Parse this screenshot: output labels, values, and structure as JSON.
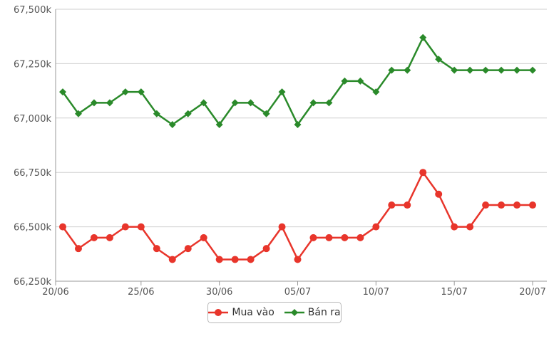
{
  "chart_data": {
    "type": "line",
    "x_dates": [
      "20/06",
      "21/06",
      "22/06",
      "23/06",
      "24/06",
      "25/06",
      "26/06",
      "27/06",
      "28/06",
      "29/06",
      "30/06",
      "01/07",
      "02/07",
      "03/07",
      "04/07",
      "05/07",
      "06/07",
      "07/07",
      "08/07",
      "09/07",
      "10/07",
      "11/07",
      "12/07",
      "13/07",
      "14/07",
      "15/07",
      "16/07",
      "17/07",
      "18/07",
      "19/07",
      "20/07"
    ],
    "x_ticks": [
      "20/06",
      "25/06",
      "30/06",
      "05/07",
      "10/07",
      "15/07",
      "20/07"
    ],
    "y_ticks": [
      "66,250k",
      "66,500k",
      "66,750k",
      "67,000k",
      "67,250k",
      "67,500k"
    ],
    "ylim": [
      66250,
      67500
    ],
    "series": [
      {
        "name": "Mua vào",
        "color": "#e8352b",
        "marker": "circle",
        "values": [
          66500,
          66400,
          66450,
          66450,
          66500,
          66500,
          66400,
          66350,
          66400,
          66450,
          66350,
          66350,
          66350,
          66400,
          66500,
          66350,
          66450,
          66450,
          66450,
          66450,
          66500,
          66600,
          66600,
          66750,
          66650,
          66500,
          66500,
          66600,
          66600,
          66600,
          66600
        ]
      },
      {
        "name": "Bán ra",
        "color": "#2a8a2a",
        "marker": "diamond",
        "values": [
          67120,
          67020,
          67070,
          67070,
          67120,
          67120,
          67020,
          66970,
          67020,
          67070,
          66970,
          67070,
          67070,
          67020,
          67120,
          66970,
          67070,
          67070,
          67170,
          67170,
          67120,
          67220,
          67220,
          67370,
          67270,
          67220,
          67220,
          67220,
          67220,
          67220,
          67220
        ]
      }
    ],
    "grid": true,
    "legend_position": "bottom-center"
  }
}
